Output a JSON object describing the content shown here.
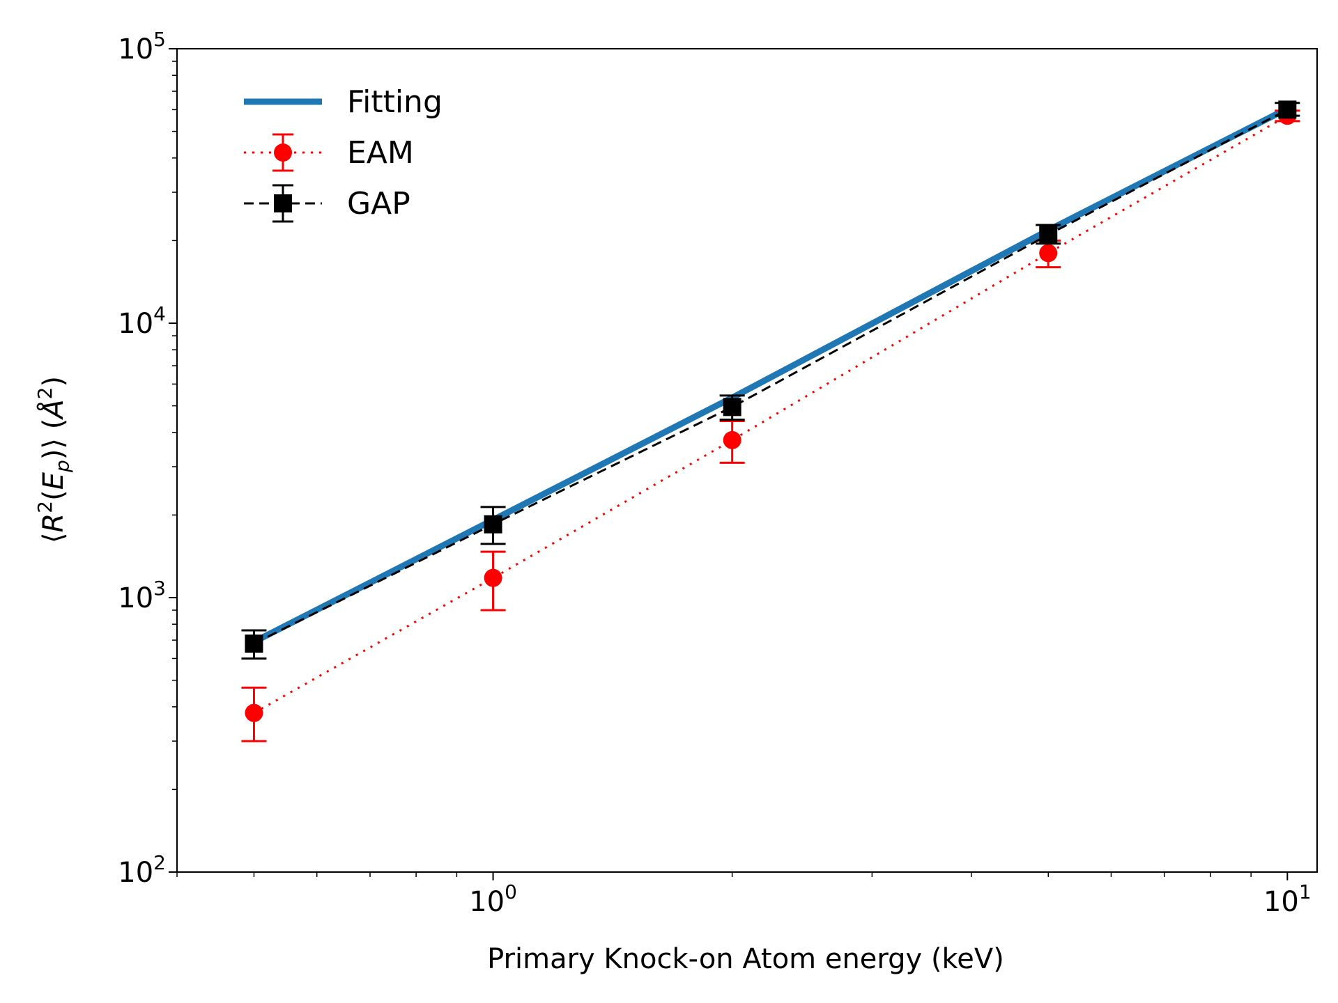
{
  "chart_data": {
    "type": "line",
    "xscale": "log",
    "yscale": "log",
    "xlabel": "Primary Knock-on Atom energy (keV)",
    "ylabel": "⟨R²(Eₚ)⟩ (Å²)",
    "ylabel_parts": [
      "⟨",
      "R",
      "2",
      "(",
      "E",
      "p",
      ")⟩ (",
      "Å",
      "2",
      ")"
    ],
    "xlim": [
      0.4,
      10.9
    ],
    "ylim": [
      100,
      100000
    ],
    "xticks": [
      {
        "value": 1,
        "base": "10",
        "exp": "0"
      },
      {
        "value": 10,
        "base": "10",
        "exp": "1"
      }
    ],
    "yticks": [
      {
        "value": 100,
        "base": "10",
        "exp": "2"
      },
      {
        "value": 1000,
        "base": "10",
        "exp": "3"
      },
      {
        "value": 10000,
        "base": "10",
        "exp": "4"
      },
      {
        "value": 100000,
        "base": "10",
        "exp": "5"
      }
    ],
    "legend_position": "top-left",
    "series": [
      {
        "name": "Fitting",
        "style": "solid",
        "color": "#1f77b4",
        "x": [
          0.5,
          1,
          2,
          5,
          10
        ],
        "y": [
          690,
          1920,
          5350,
          21800,
          60500
        ]
      },
      {
        "name": "EAM",
        "style": "dotted",
        "marker": "circle",
        "color": "#ff0000",
        "x": [
          0.5,
          1,
          2,
          5,
          10
        ],
        "y": [
          380,
          1180,
          3750,
          18000,
          57000
        ],
        "err_low": [
          300,
          900,
          3100,
          16000,
          54500
        ],
        "err_high": [
          470,
          1470,
          4400,
          20000,
          59500
        ]
      },
      {
        "name": "GAP",
        "style": "dashed",
        "marker": "square",
        "color": "#000000",
        "x": [
          0.5,
          1,
          2,
          5,
          10
        ],
        "y": [
          680,
          1850,
          4950,
          21000,
          60000
        ],
        "err_low": [
          600,
          1570,
          4450,
          19500,
          57000
        ],
        "err_high": [
          760,
          2140,
          5450,
          22800,
          63500
        ]
      }
    ]
  }
}
